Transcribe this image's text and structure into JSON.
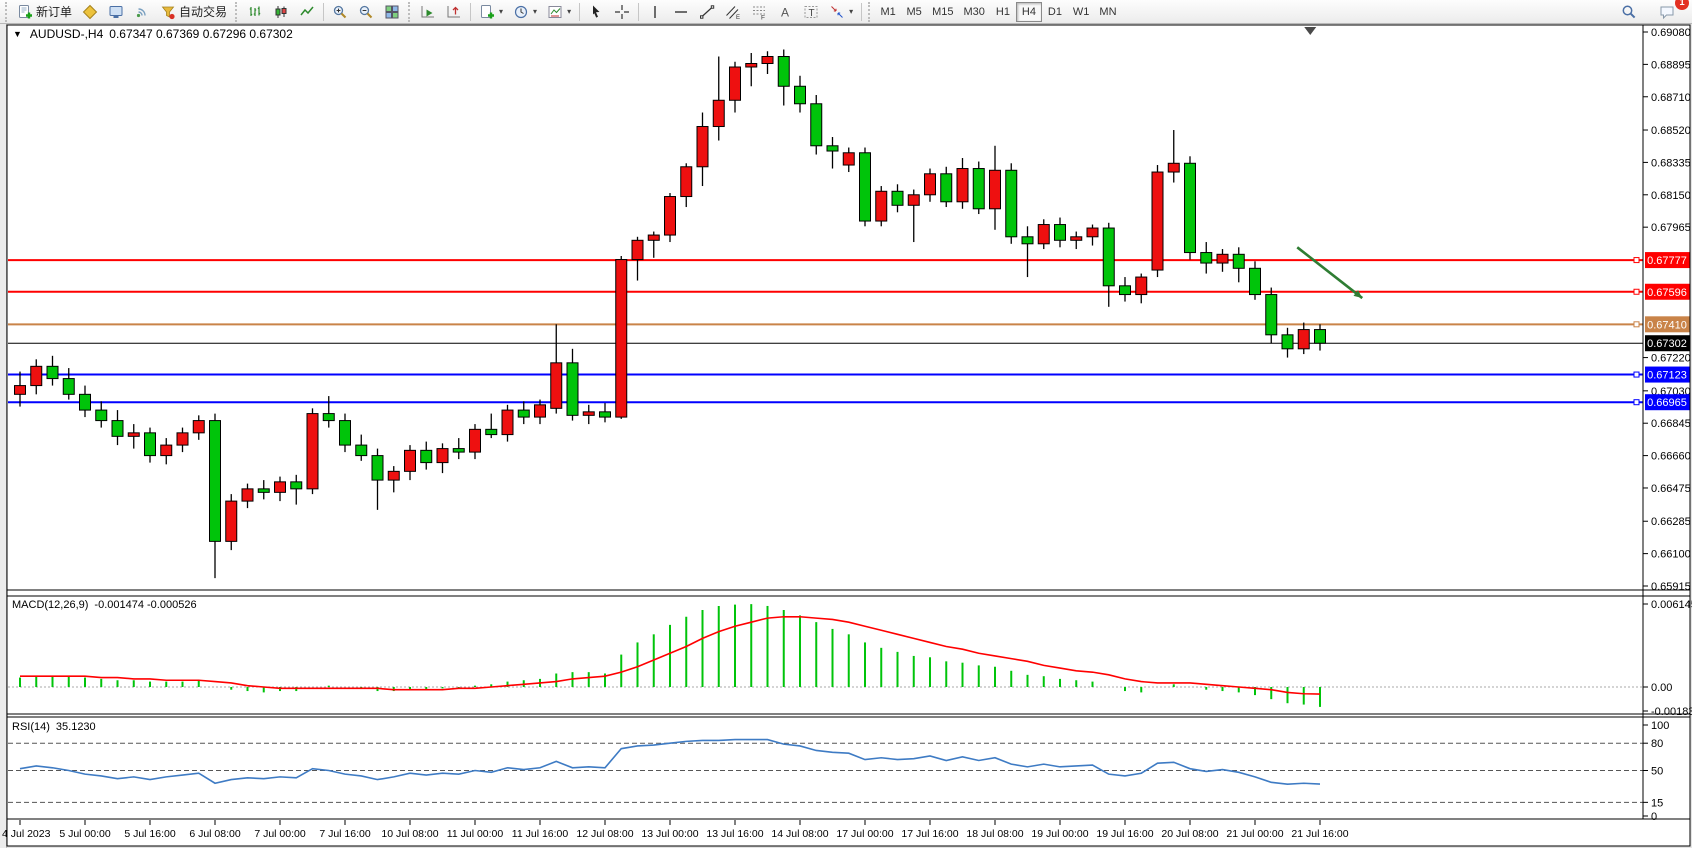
{
  "toolbar": {
    "new_order_label": "新订单",
    "autotrade_label": "自动交易",
    "timeframes": [
      "M1",
      "M5",
      "M15",
      "M30",
      "H1",
      "H4",
      "D1",
      "W1",
      "MN"
    ],
    "active_timeframe": "H4",
    "notification_badge": "1",
    "icon_buttons": [
      "new-order",
      "mql5",
      "metaeditor",
      "signals",
      "autotrading",
      "bar-chart",
      "candlestick-chart",
      "line-chart",
      "zoom-in",
      "zoom-out",
      "tile-windows",
      "auto-scroll",
      "chart-shift",
      "new-chart",
      "periods",
      "templates",
      "cursor",
      "crosshair",
      "vertical-line",
      "horizontal-line",
      "trendline",
      "equidistant-channel",
      "fibonacci",
      "text",
      "text-label",
      "arrows",
      "search",
      "comments"
    ]
  },
  "window": {
    "title_symbol": "AUDUSD-,H4",
    "title_quote": "0.67347 0.67369 0.67296 0.67302"
  },
  "chart_data": {
    "type": "candlestick",
    "symbol": "AUDUSD-",
    "period": "H4",
    "bull_color": "#ee1010",
    "bear_color": "#00c40a",
    "wick_color": "#000000",
    "x_labels": [
      "4 Jul 2023",
      "5 Jul 00:00",
      "5 Jul 16:00",
      "6 Jul 08:00",
      "7 Jul 00:00",
      "7 Jul 16:00",
      "10 Jul 08:00",
      "11 Jul 00:00",
      "11 Jul 16:00",
      "12 Jul 08:00",
      "13 Jul 00:00",
      "13 Jul 16:00",
      "14 Jul 08:00",
      "17 Jul 00:00",
      "17 Jul 16:00",
      "18 Jul 08:00",
      "19 Jul 00:00",
      "19 Jul 16:00",
      "20 Jul 08:00",
      "21 Jul 00:00",
      "21 Jul 16:00"
    ],
    "x_label_step": 4,
    "y_axis": {
      "min": 0.65915,
      "max": 0.6908,
      "ticks": [
        0.6908,
        0.68895,
        0.6871,
        0.6852,
        0.68335,
        0.6815,
        0.67965,
        0.6722,
        0.6703,
        0.66845,
        0.6666,
        0.66475,
        0.66285,
        0.661,
        0.65915
      ]
    },
    "levels": [
      {
        "price": 0.67777,
        "label": "0.67777",
        "color": "#ff0000",
        "width": 2,
        "marker": true
      },
      {
        "price": 0.67596,
        "label": "0.67596",
        "color": "#ff0000",
        "width": 2,
        "marker": true
      },
      {
        "price": 0.6741,
        "label": "0.67410",
        "color": "#c98348",
        "width": 2,
        "marker": true
      },
      {
        "price": 0.67302,
        "label": "0.67302",
        "color": "#000000",
        "width": 1,
        "marker": false
      },
      {
        "price": 0.67123,
        "label": "0.67123",
        "color": "#0000ff",
        "width": 2,
        "marker": true
      },
      {
        "price": 0.66965,
        "label": "0.66965",
        "color": "#0000ff",
        "width": 2,
        "marker": true
      }
    ],
    "candles": [
      [
        0.6701,
        0.6714,
        0.6694,
        0.6706
      ],
      [
        0.6706,
        0.6721,
        0.6701,
        0.6717
      ],
      [
        0.6717,
        0.6723,
        0.6706,
        0.671
      ],
      [
        0.671,
        0.6716,
        0.6698,
        0.6701
      ],
      [
        0.6701,
        0.6706,
        0.6688,
        0.6692
      ],
      [
        0.6692,
        0.6697,
        0.6682,
        0.6686
      ],
      [
        0.6686,
        0.6692,
        0.6672,
        0.6677
      ],
      [
        0.6677,
        0.6684,
        0.667,
        0.6679
      ],
      [
        0.6679,
        0.6682,
        0.6662,
        0.6666
      ],
      [
        0.6666,
        0.6676,
        0.6661,
        0.6672
      ],
      [
        0.6672,
        0.6682,
        0.6668,
        0.6679
      ],
      [
        0.6679,
        0.6689,
        0.6675,
        0.6686
      ],
      [
        0.6686,
        0.669,
        0.6596,
        0.6617
      ],
      [
        0.6617,
        0.6644,
        0.6612,
        0.664
      ],
      [
        0.664,
        0.665,
        0.6636,
        0.6647
      ],
      [
        0.6647,
        0.6652,
        0.6641,
        0.6645
      ],
      [
        0.6645,
        0.6654,
        0.664,
        0.6651
      ],
      [
        0.6651,
        0.6655,
        0.6638,
        0.6647
      ],
      [
        0.6647,
        0.6693,
        0.6644,
        0.669
      ],
      [
        0.669,
        0.67,
        0.6682,
        0.6686
      ],
      [
        0.6686,
        0.669,
        0.6668,
        0.6672
      ],
      [
        0.6672,
        0.6678,
        0.6663,
        0.6666
      ],
      [
        0.6666,
        0.667,
        0.6635,
        0.6652
      ],
      [
        0.6652,
        0.666,
        0.6645,
        0.6657
      ],
      [
        0.6657,
        0.6672,
        0.6652,
        0.6669
      ],
      [
        0.6669,
        0.6674,
        0.6658,
        0.6662
      ],
      [
        0.6662,
        0.6673,
        0.6656,
        0.667
      ],
      [
        0.667,
        0.6676,
        0.6664,
        0.6668
      ],
      [
        0.6668,
        0.6684,
        0.6664,
        0.6681
      ],
      [
        0.6681,
        0.669,
        0.6676,
        0.6678
      ],
      [
        0.6678,
        0.6695,
        0.6674,
        0.6692
      ],
      [
        0.6692,
        0.6697,
        0.6684,
        0.6688
      ],
      [
        0.6688,
        0.6698,
        0.6684,
        0.6695
      ],
      [
        0.6693,
        0.6741,
        0.669,
        0.6719
      ],
      [
        0.6719,
        0.6727,
        0.6686,
        0.6689
      ],
      [
        0.6689,
        0.6695,
        0.6684,
        0.6691
      ],
      [
        0.6691,
        0.6696,
        0.6685,
        0.6688
      ],
      [
        0.6688,
        0.678,
        0.6687,
        0.6778
      ],
      [
        0.6778,
        0.6791,
        0.6766,
        0.6789
      ],
      [
        0.6789,
        0.6794,
        0.6779,
        0.6792
      ],
      [
        0.6792,
        0.6816,
        0.6788,
        0.6814
      ],
      [
        0.6814,
        0.6833,
        0.6808,
        0.6831
      ],
      [
        0.6831,
        0.6862,
        0.682,
        0.6854
      ],
      [
        0.6854,
        0.6894,
        0.6846,
        0.6869
      ],
      [
        0.6869,
        0.6891,
        0.6862,
        0.6888
      ],
      [
        0.6888,
        0.6896,
        0.6877,
        0.689
      ],
      [
        0.689,
        0.6897,
        0.6884,
        0.6894
      ],
      [
        0.6894,
        0.6898,
        0.6866,
        0.6877
      ],
      [
        0.6877,
        0.6883,
        0.6862,
        0.6867
      ],
      [
        0.6867,
        0.6872,
        0.6838,
        0.6843
      ],
      [
        0.6843,
        0.6848,
        0.683,
        0.684
      ],
      [
        0.6832,
        0.6842,
        0.6828,
        0.6839
      ],
      [
        0.6839,
        0.6842,
        0.6797,
        0.68
      ],
      [
        0.68,
        0.682,
        0.6797,
        0.6817
      ],
      [
        0.6817,
        0.6821,
        0.6805,
        0.6809
      ],
      [
        0.6809,
        0.6818,
        0.6788,
        0.6815
      ],
      [
        0.6815,
        0.683,
        0.6811,
        0.6827
      ],
      [
        0.6827,
        0.6831,
        0.6808,
        0.6811
      ],
      [
        0.6811,
        0.6836,
        0.6807,
        0.683
      ],
      [
        0.683,
        0.6834,
        0.6804,
        0.6807
      ],
      [
        0.6807,
        0.6843,
        0.6795,
        0.6829
      ],
      [
        0.6829,
        0.6833,
        0.6787,
        0.6791
      ],
      [
        0.6791,
        0.6797,
        0.6768,
        0.6787
      ],
      [
        0.6787,
        0.6801,
        0.6784,
        0.6798
      ],
      [
        0.6798,
        0.6802,
        0.6785,
        0.6789
      ],
      [
        0.6789,
        0.6794,
        0.6784,
        0.6791
      ],
      [
        0.6791,
        0.6798,
        0.6786,
        0.6796
      ],
      [
        0.6796,
        0.6799,
        0.6751,
        0.6763
      ],
      [
        0.6763,
        0.6768,
        0.6754,
        0.6758
      ],
      [
        0.6758,
        0.677,
        0.6753,
        0.6768
      ],
      [
        0.6772,
        0.6832,
        0.6768,
        0.6828
      ],
      [
        0.6828,
        0.6852,
        0.6822,
        0.6833
      ],
      [
        0.6833,
        0.6837,
        0.6778,
        0.6782
      ],
      [
        0.6782,
        0.6788,
        0.677,
        0.6776
      ],
      [
        0.6776,
        0.6784,
        0.6771,
        0.6781
      ],
      [
        0.6781,
        0.6785,
        0.6765,
        0.6773
      ],
      [
        0.6773,
        0.6777,
        0.6755,
        0.6758
      ],
      [
        0.6758,
        0.6762,
        0.673,
        0.6735
      ],
      [
        0.6735,
        0.6739,
        0.6722,
        0.6727
      ],
      [
        0.6727,
        0.6742,
        0.6724,
        0.6738
      ],
      [
        0.6738,
        0.6741,
        0.6726,
        0.67302
      ]
    ],
    "arrow": {
      "from_index": 78.6,
      "from_price": 0.6785,
      "to_index": 82.6,
      "to_price": 0.6756,
      "color": "#2f7d33"
    },
    "shift_marker_index": 79.4,
    "macd": {
      "label": "MACD(12,26,9)",
      "values_text": "-0.001474 -0.000526",
      "main_value": -0.001474,
      "signal_value": -0.000526,
      "histogram_color": "#00c40a",
      "signal_color": "#ff0000",
      "y_ticks": [
        {
          "v": 0.006145,
          "label": "0.006145"
        },
        {
          "v": 0,
          "label": "0.00"
        },
        {
          "v": -0.001837,
          "label": "-0.001837"
        }
      ],
      "histogram": [
        0.0007,
        0.0008,
        0.0008,
        0.0008,
        0.0007,
        0.0006,
        0.0005,
        0.0005,
        0.0004,
        0.0004,
        0.0004,
        0.0005,
        0.0,
        -0.0002,
        -0.0003,
        -0.0004,
        -0.0003,
        -0.0003,
        0.0,
        0.0001,
        0.0,
        -0.0001,
        -0.0003,
        -0.0003,
        -0.0002,
        -0.0002,
        -0.0001,
        -0.0001,
        0.0001,
        0.0002,
        0.0004,
        0.0005,
        0.0006,
        0.001,
        0.0011,
        0.0011,
        0.001,
        0.0024,
        0.0033,
        0.0039,
        0.0046,
        0.0052,
        0.0057,
        0.006,
        0.0061,
        0.00614,
        0.006,
        0.0057,
        0.0053,
        0.0048,
        0.0043,
        0.0039,
        0.0033,
        0.0029,
        0.0026,
        0.0023,
        0.0022,
        0.0019,
        0.0018,
        0.0016,
        0.0015,
        0.0012,
        0.0009,
        0.0008,
        0.0006,
        0.0005,
        0.0004,
        0.0,
        -0.0003,
        -0.0004,
        0.0,
        0.0002,
        0.0,
        -0.0002,
        -0.0003,
        -0.0004,
        -0.0006,
        -0.0009,
        -0.0012,
        -0.0013,
        -0.001474
      ],
      "signal": [
        0.0008,
        0.0008,
        0.0008,
        0.0008,
        0.0008,
        0.0007,
        0.0007,
        0.0006,
        0.0006,
        0.0005,
        0.0005,
        0.0005,
        0.0004,
        0.0003,
        0.0001,
        0.0,
        -0.0001,
        -0.0001,
        -0.0001,
        -0.0001,
        -0.0001,
        -0.0001,
        -0.0001,
        -0.0002,
        -0.0002,
        -0.0002,
        -0.0002,
        -0.0001,
        -0.0001,
        0.0,
        0.0001,
        0.0002,
        0.0003,
        0.0004,
        0.0006,
        0.0007,
        0.0008,
        0.0011,
        0.0015,
        0.002,
        0.0025,
        0.003,
        0.0036,
        0.0041,
        0.0045,
        0.0048,
        0.0051,
        0.0052,
        0.0052,
        0.0051,
        0.005,
        0.0048,
        0.0045,
        0.0042,
        0.0039,
        0.0036,
        0.0033,
        0.003,
        0.0028,
        0.0025,
        0.0023,
        0.0021,
        0.0019,
        0.0016,
        0.0014,
        0.0012,
        0.0011,
        0.0009,
        0.0006,
        0.0004,
        0.0003,
        0.0003,
        0.0003,
        0.0002,
        0.0001,
        0.0,
        -0.0001,
        -0.0002,
        -0.0004,
        -0.0005,
        -0.000526
      ]
    },
    "rsi": {
      "label": "RSI(14)",
      "value_text": "35.1230",
      "value": 35.123,
      "color": "#3e7bc4",
      "range": [
        0,
        100
      ],
      "levels": [
        80,
        50,
        15
      ],
      "y_ticks": [
        100,
        80,
        50,
        15,
        0
      ],
      "series": [
        52,
        55,
        53,
        50,
        46,
        44,
        41,
        43,
        40,
        43,
        45,
        47,
        36,
        40,
        42,
        41,
        43,
        42,
        52,
        50,
        46,
        44,
        40,
        43,
        47,
        45,
        47,
        46,
        50,
        48,
        53,
        51,
        53,
        60,
        53,
        54,
        53,
        74,
        77,
        78,
        80,
        82,
        83,
        83,
        84,
        84,
        84,
        79,
        77,
        72,
        70,
        69,
        62,
        64,
        62,
        63,
        66,
        61,
        65,
        61,
        64,
        57,
        54,
        57,
        54,
        55,
        56,
        46,
        44,
        47,
        58,
        59,
        52,
        49,
        51,
        48,
        43,
        37,
        35,
        36,
        35.123
      ]
    }
  }
}
